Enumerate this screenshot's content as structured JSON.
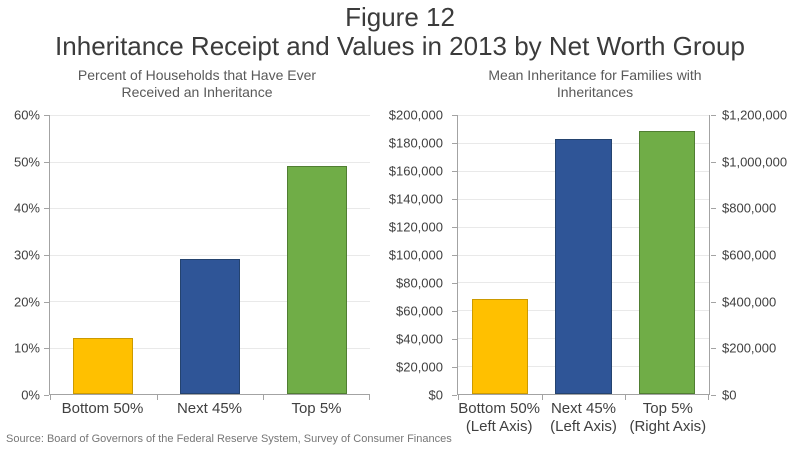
{
  "figure": {
    "number_line": "Figure 12",
    "title_line": "Inheritance Receipt and Values in 2013 by Net Worth Group"
  },
  "source_note": "Source: Board of Governors of the Federal Reserve System, Survey of Consumer Finances",
  "palette": {
    "gold": "#FFC000",
    "blue": "#2F5597",
    "green": "#70AD47",
    "axis_line": "#A3A3A3",
    "gridline": "#E9E9E9",
    "title_text": "#3B3B3B",
    "subtitle_text": "#595959",
    "label_text": "#404040",
    "source_text": "#767676"
  },
  "chart_data": [
    {
      "type": "bar",
      "title": "Percent of Households that Have Ever Received an Inheritance",
      "categories": [
        "Bottom 50%",
        "Next 45%",
        "Top 5%"
      ],
      "values": [
        12,
        29,
        49
      ],
      "value_unit": "percent",
      "ylim": [
        0,
        60
      ],
      "yticks": [
        0,
        10,
        20,
        30,
        40,
        50,
        60
      ],
      "ytick_labels": [
        "0%",
        "10%",
        "20%",
        "30%",
        "40%",
        "50%",
        "60%"
      ],
      "grid": true,
      "legend": "none",
      "bar_frac": 0.56,
      "bar_colors": [
        "#FFC000",
        "#2F5597",
        "#70AD47"
      ],
      "bar_borders": [
        "#CC9A00",
        "#24436F",
        "#507E32"
      ]
    },
    {
      "type": "bar",
      "title": "Mean Inheritance for Families with Inheritances",
      "categories": [
        "Bottom 50%",
        "Next 45%",
        "Top 5%"
      ],
      "category_sublabels": [
        "(Left Axis)",
        "(Left Axis)",
        "(Right Axis)"
      ],
      "values": [
        68000,
        183000,
        1130000
      ],
      "value_unit": "dollars",
      "bar_axes": [
        "left",
        "left",
        "right"
      ],
      "left_axis": {
        "ylim": [
          0,
          200000
        ],
        "ticks": [
          0,
          20000,
          40000,
          60000,
          80000,
          100000,
          120000,
          140000,
          160000,
          180000,
          200000
        ],
        "tick_labels": [
          "$0",
          "$20,000",
          "$40,000",
          "$60,000",
          "$80,000",
          "$100,000",
          "$120,000",
          "$140,000",
          "$160,000",
          "$180,000",
          "$200,000"
        ]
      },
      "right_axis": {
        "ylim": [
          0,
          1200000
        ],
        "ticks": [
          0,
          200000,
          400000,
          600000,
          800000,
          1000000,
          1200000
        ],
        "tick_labels": [
          "$0",
          "$200,000",
          "$400,000",
          "$600,000",
          "$800,000",
          "$1,000,000",
          "$1,200,000"
        ]
      },
      "grid": true,
      "legend": "none",
      "bar_frac": 0.67,
      "bar_colors": [
        "#FFC000",
        "#2F5597",
        "#70AD47"
      ],
      "bar_borders": [
        "#CC9A00",
        "#24436F",
        "#507E32"
      ]
    }
  ]
}
